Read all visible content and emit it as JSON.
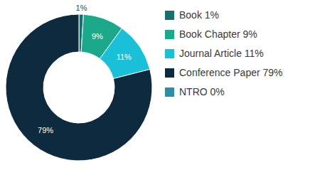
{
  "chart_data": {
    "type": "donut",
    "categories": [
      "Book 1%",
      "Book Chapter 9%",
      "Journal Article 11%",
      "Conference Paper 79%",
      "NTRO 0%"
    ],
    "values": [
      1,
      9,
      11,
      79,
      0
    ],
    "value_labels": [
      "1%",
      "9%",
      "11%",
      "79%",
      null
    ],
    "colors": [
      "#17706e",
      "#1ba88b",
      "#19c0d8",
      "#0e2a3f",
      "#2b8ea6"
    ],
    "data_labels": true,
    "legend": "right"
  }
}
